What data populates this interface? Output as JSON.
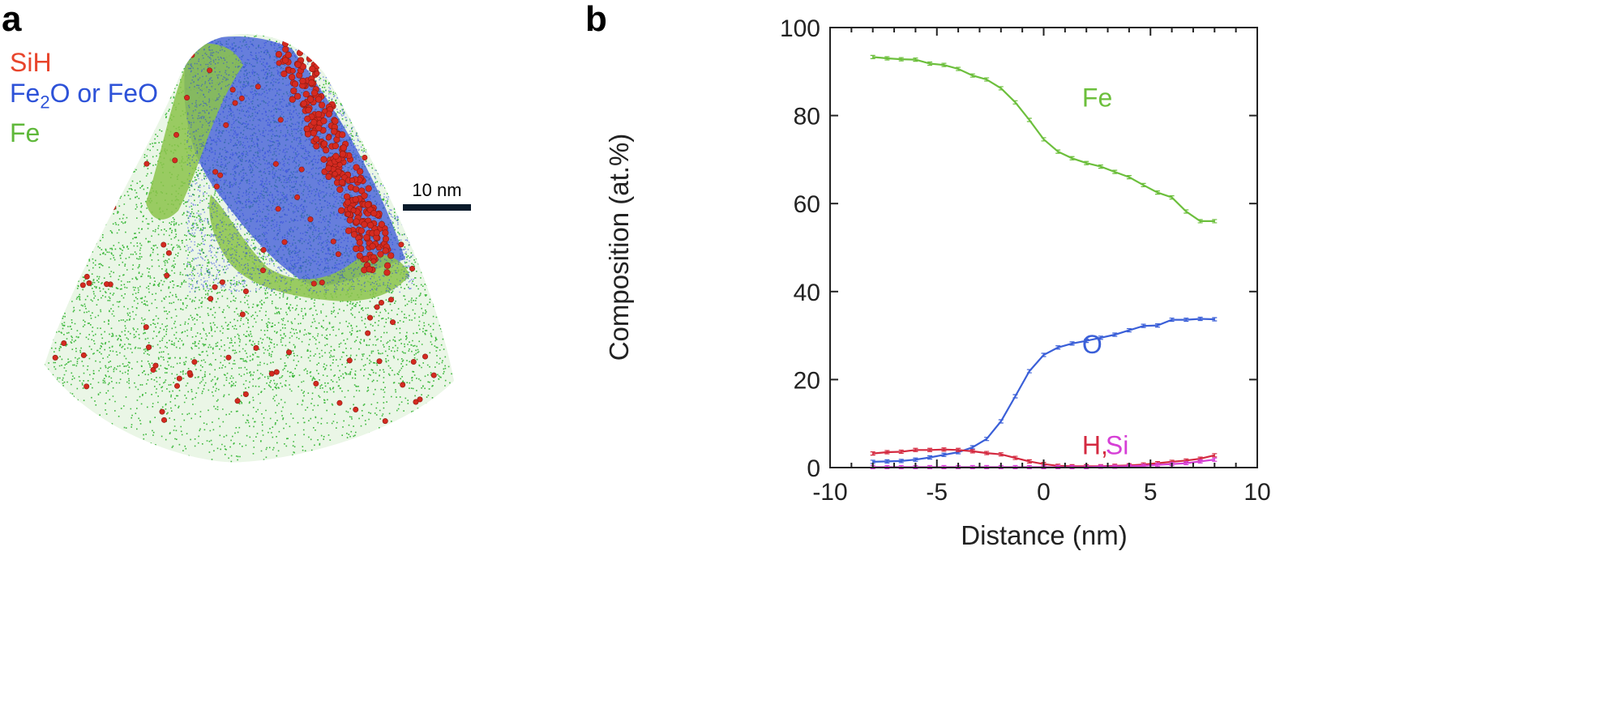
{
  "panel_a": {
    "label": "a",
    "legend": [
      {
        "text": "SiH",
        "color": "#e8452c"
      },
      {
        "prefix": "Fe",
        "sub": "2",
        "suffix": "O or FeO",
        "color": "#2d52d8"
      },
      {
        "text": "Fe",
        "color": "#5fb83a"
      }
    ],
    "scale_bar": "10 nm",
    "colors": {
      "fe_atoms": "#3cb83c",
      "oxide_atoms": "#2a45e0",
      "sih_atoms": "#d42a20",
      "isosurface": "#8bc34a"
    }
  },
  "panel_b": {
    "label": "b"
  },
  "chart_data": {
    "type": "line",
    "xlabel": "Distance (nm)",
    "ylabel": "Composition (at.%)",
    "xlim": [
      -10,
      10
    ],
    "ylim": [
      0,
      100
    ],
    "xticks": [
      -10,
      -5,
      0,
      5,
      10
    ],
    "yticks": [
      0,
      20,
      40,
      60,
      80,
      100
    ],
    "x": [
      -8,
      -7.33,
      -6.67,
      -6,
      -5.33,
      -4.67,
      -4,
      -3.33,
      -2.67,
      -2,
      -1.33,
      -0.67,
      0,
      0.67,
      1.33,
      2,
      2.67,
      3.33,
      4,
      4.67,
      5.33,
      6,
      6.67,
      7.33,
      8
    ],
    "grid": false,
    "error_bars": true,
    "series": [
      {
        "name": "Fe",
        "color": "#6cbf3c",
        "label_at": [
          -3.2,
          82
        ],
        "values": [
          93.3,
          93.0,
          92.8,
          92.7,
          91.8,
          91.5,
          90.6,
          89.1,
          88.2,
          86.2,
          83.0,
          79.0,
          74.6,
          71.8,
          70.3,
          69.2,
          68.4,
          67.2,
          66.0,
          64.2,
          62.5,
          61.4,
          58.2,
          56.0,
          56.0
        ]
      },
      {
        "name": "O",
        "color": "#3a5fd8",
        "label_at": [
          -3.2,
          26
        ],
        "values": [
          1.3,
          1.4,
          1.5,
          1.8,
          2.3,
          2.9,
          3.5,
          4.6,
          6.5,
          10.5,
          16.2,
          21.9,
          25.6,
          27.3,
          28.2,
          28.8,
          29.5,
          30.2,
          31.2,
          32.2,
          32.3,
          33.6,
          33.6,
          33.8,
          33.7
        ]
      },
      {
        "name": "H,",
        "color": "#d42a40",
        "label_at": [
          -3.2,
          3
        ],
        "values": [
          3.2,
          3.5,
          3.6,
          4.0,
          4.0,
          4.1,
          4.0,
          3.7,
          3.3,
          3.0,
          2.2,
          1.4,
          0.8,
          0.4,
          0.3,
          0.3,
          0.3,
          0.4,
          0.5,
          0.7,
          1.0,
          1.3,
          1.6,
          2.0,
          2.8
        ]
      },
      {
        "name": "Si",
        "color": "#d63fd6",
        "label_at": [
          -2.1,
          3
        ],
        "values": [
          0.1,
          0.1,
          0.1,
          0.1,
          0.1,
          0.1,
          0.1,
          0.1,
          0.1,
          0.1,
          0.1,
          0.1,
          0.1,
          0.1,
          0.1,
          0.1,
          0.2,
          0.2,
          0.3,
          0.4,
          0.6,
          0.8,
          1.0,
          1.4,
          1.8
        ]
      }
    ]
  }
}
